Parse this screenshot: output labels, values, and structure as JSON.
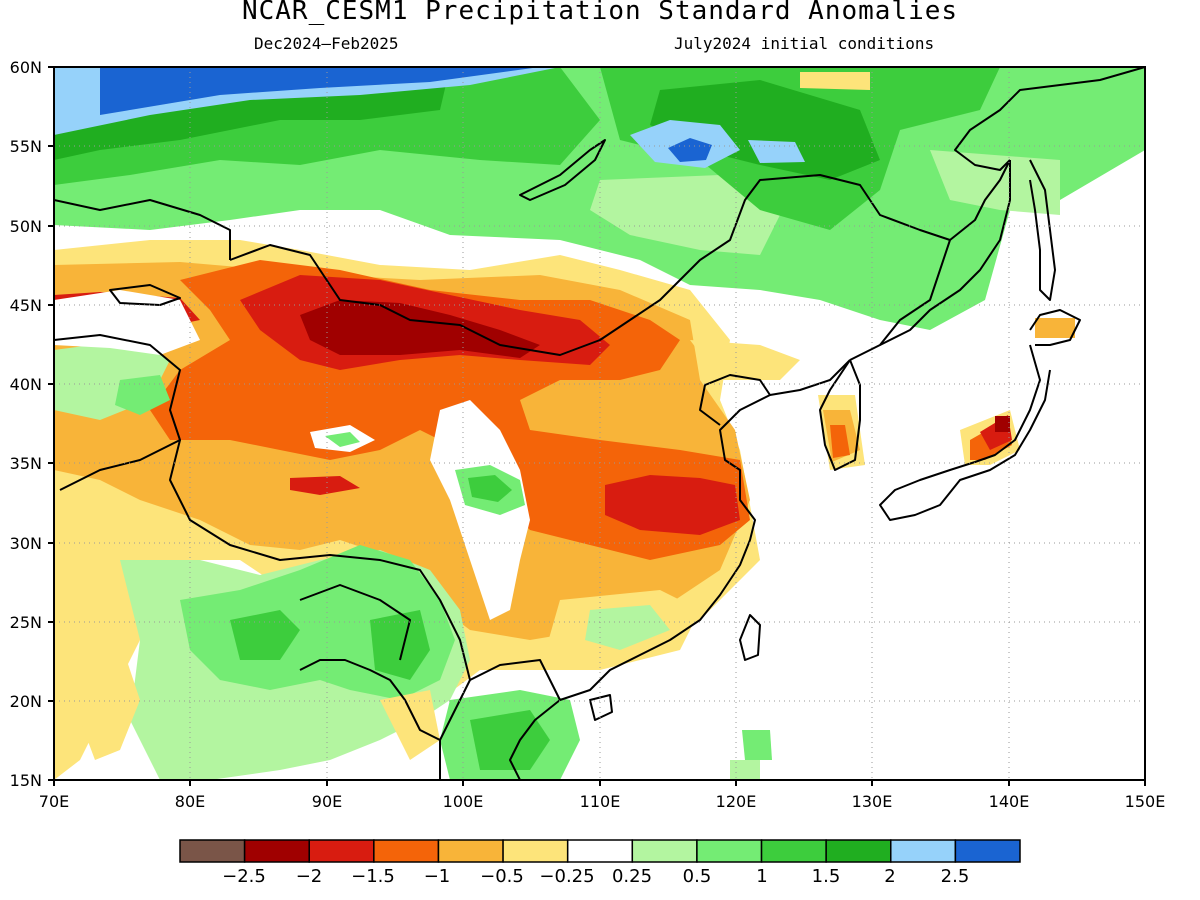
{
  "title": "NCAR_CESM1 Precipitation Standard Anomalies",
  "subtitle_left": "Dec2024–Feb2025",
  "subtitle_right": "July2024 initial conditions",
  "map": {
    "lon_range": [
      70,
      150
    ],
    "lat_range": [
      15,
      60
    ],
    "x_ticks": [
      "70E",
      "80E",
      "90E",
      "100E",
      "110E",
      "120E",
      "130E",
      "140E",
      "150E"
    ],
    "y_ticks": [
      "60N",
      "55N",
      "50N",
      "45N",
      "40N",
      "35N",
      "30N",
      "25N",
      "20N",
      "15N"
    ],
    "grid": "dotted"
  },
  "colorbar": {
    "colors": [
      "#7a5548",
      "#a00000",
      "#d81c10",
      "#f46409",
      "#f8b439",
      "#fde47a",
      "#ffffff",
      "#b3f5a0",
      "#74ec74",
      "#3dcd3d",
      "#20ae20",
      "#96d2fa",
      "#1a64d2"
    ],
    "labels": [
      "−2.5",
      "−2",
      "−1.5",
      "−1",
      "−0.5",
      "−0.25",
      "0.25",
      "0.5",
      "1",
      "1.5",
      "2",
      "2.5"
    ]
  }
}
